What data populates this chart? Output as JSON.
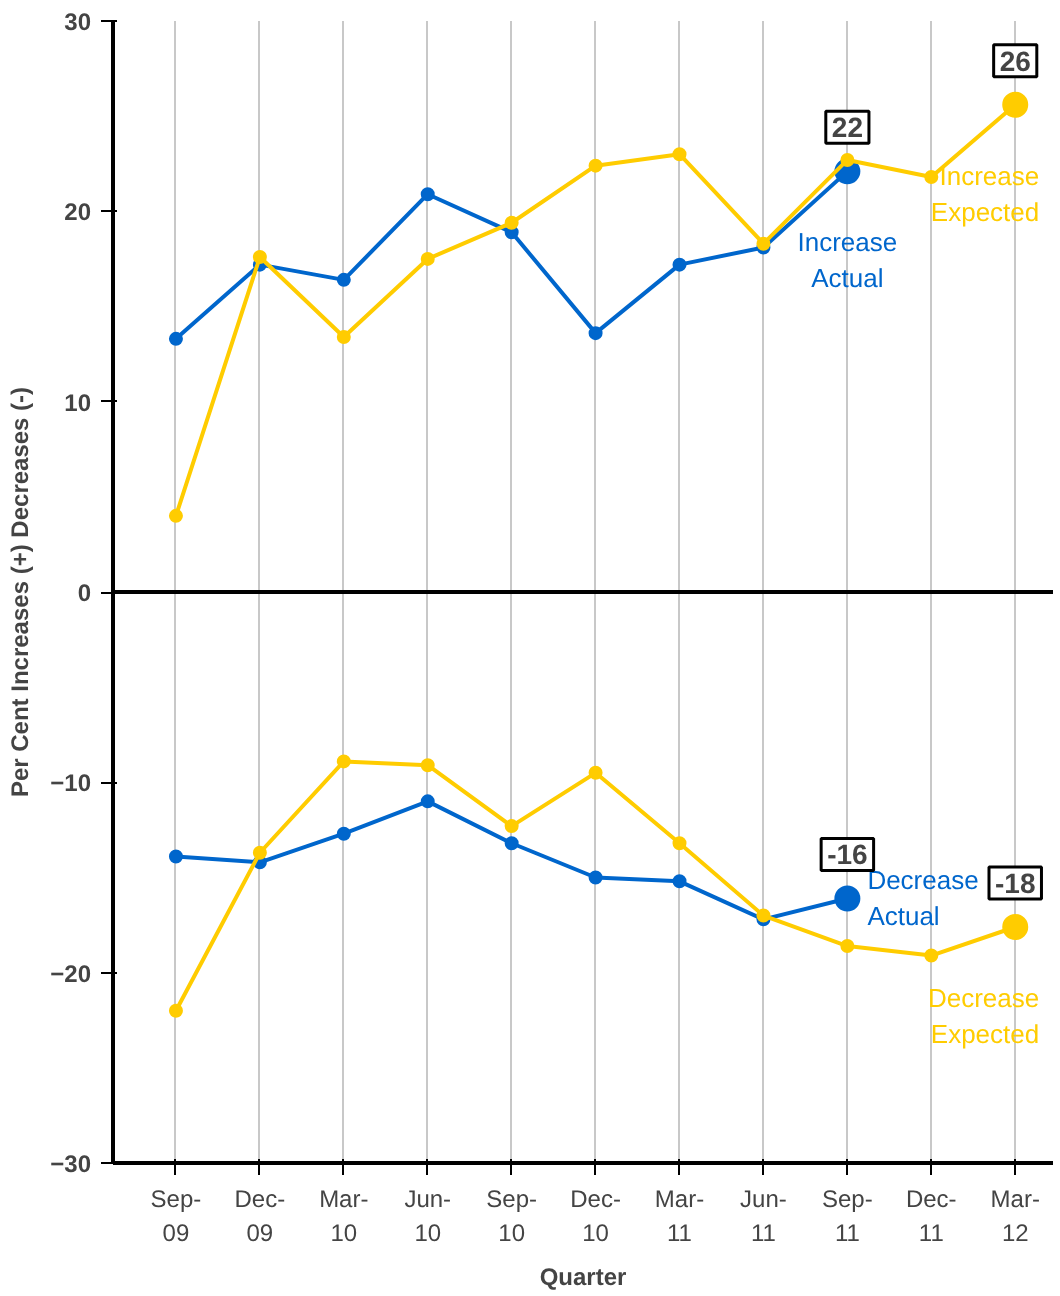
{
  "chart_data": {
    "type": "line",
    "xlabel": "Quarter",
    "ylabel": "Per Cent Increases (+) Decreases (-)",
    "categories": [
      "Sep-09",
      "Dec-09",
      "Mar-10",
      "Jun-10",
      "Sep-10",
      "Dec-10",
      "Mar-11",
      "Jun-11",
      "Sep-11",
      "Dec-11",
      "Mar-12"
    ],
    "series": [
      {
        "name": "Increase Actual",
        "color": "#0066cc",
        "values": [
          13.3,
          17.2,
          16.4,
          20.9,
          18.9,
          13.6,
          17.2,
          18.1,
          22.1,
          null,
          null
        ],
        "value_labels": [
          null,
          null,
          null,
          null,
          null,
          null,
          null,
          null,
          "22",
          null,
          null
        ]
      },
      {
        "name": "Increase Expected",
        "color": "#ffcc00",
        "values": [
          4.0,
          17.6,
          13.4,
          17.5,
          19.4,
          22.4,
          23.0,
          18.3,
          22.7,
          21.8,
          25.6
        ],
        "value_labels": [
          null,
          null,
          null,
          null,
          null,
          null,
          null,
          null,
          null,
          null,
          "26"
        ]
      },
      {
        "name": "Decrease Actual",
        "color": "#0066cc",
        "values": [
          -13.9,
          -14.2,
          -12.7,
          -11.0,
          -13.2,
          -15.0,
          -15.2,
          -17.2,
          -16.1,
          null,
          null
        ],
        "value_labels": [
          null,
          null,
          null,
          null,
          null,
          null,
          null,
          null,
          "-16",
          null,
          null
        ]
      },
      {
        "name": "Decrease Expected",
        "color": "#ffcc00",
        "values": [
          -22.0,
          -13.7,
          -8.9,
          -9.1,
          -12.3,
          -9.5,
          -13.2,
          -17.0,
          -18.6,
          -19.1,
          -17.6
        ],
        "value_labels": [
          null,
          null,
          null,
          null,
          null,
          null,
          null,
          null,
          null,
          null,
          "-18"
        ]
      }
    ],
    "ylim": [
      -30,
      30
    ],
    "yticks": [
      -30,
      -20,
      -10,
      0,
      10,
      20,
      30
    ],
    "ref_lines": [
      {
        "axis": "y",
        "value": 0,
        "color": "#000000"
      }
    ],
    "grid": "x",
    "marker": "circle",
    "line_style": "solid"
  }
}
